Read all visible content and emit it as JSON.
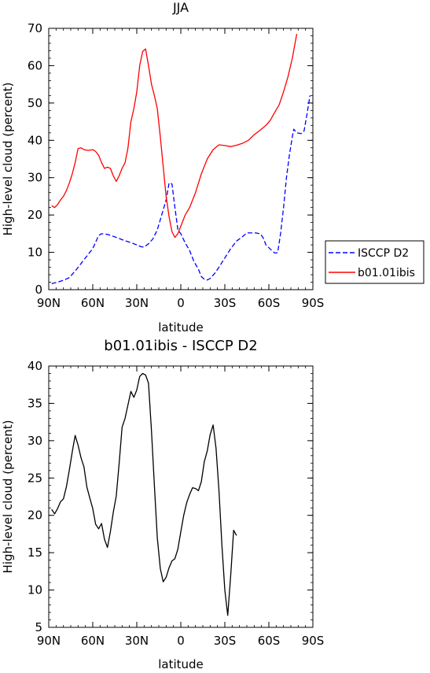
{
  "chart_data": [
    {
      "type": "line",
      "title": "JJA",
      "xlabel": "latitude",
      "ylabel": "High-level cloud (percent)",
      "xlim": [
        90,
        -90
      ],
      "ylim": [
        0,
        70
      ],
      "x_ticks": [
        90,
        60,
        30,
        0,
        -30,
        -60,
        -90
      ],
      "x_tick_labels": [
        "90N",
        "60N",
        "30N",
        "0",
        "30S",
        "60S",
        "90S"
      ],
      "y_ticks": [
        0,
        10,
        20,
        30,
        40,
        50,
        60,
        70
      ],
      "y_tick_labels": [
        "0",
        "10",
        "20",
        "30",
        "40",
        "50",
        "60",
        "70"
      ],
      "legend_position": "right",
      "series": [
        {
          "name": "ISCCP D2",
          "color": "#0000ff",
          "dash": "dashed",
          "points": [
            [
              88,
              1.6
            ],
            [
              84,
              2
            ],
            [
              80,
              2.5
            ],
            [
              76,
              3.2
            ],
            [
              72,
              5
            ],
            [
              68,
              7
            ],
            [
              64,
              9
            ],
            [
              60,
              11
            ],
            [
              56,
              14.5
            ],
            [
              54,
              15
            ],
            [
              50,
              14.8
            ],
            [
              46,
              14.3
            ],
            [
              42,
              13.7
            ],
            [
              38,
              13.1
            ],
            [
              34,
              12.6
            ],
            [
              30,
              12
            ],
            [
              27,
              11.5
            ],
            [
              25,
              11.4
            ],
            [
              22,
              12.3
            ],
            [
              19,
              13.6
            ],
            [
              16,
              16
            ],
            [
              13,
              20
            ],
            [
              10,
              24
            ],
            [
              8,
              28.6
            ],
            [
              6,
              28.3
            ],
            [
              4,
              22
            ],
            [
              2,
              16
            ],
            [
              0,
              15
            ],
            [
              -3,
              12.5
            ],
            [
              -6,
              10.5
            ],
            [
              -9,
              7.5
            ],
            [
              -12,
              5.5
            ],
            [
              -14,
              3.5
            ],
            [
              -16,
              2.8
            ],
            [
              -18,
              2.6
            ],
            [
              -20,
              3
            ],
            [
              -23,
              4.3
            ],
            [
              -26,
              6
            ],
            [
              -30,
              8.5
            ],
            [
              -34,
              11
            ],
            [
              -38,
              13
            ],
            [
              -42,
              14.2
            ],
            [
              -45,
              15.2
            ],
            [
              -48,
              15.2
            ],
            [
              -51,
              15.2
            ],
            [
              -54,
              15
            ],
            [
              -56,
              14
            ],
            [
              -58,
              12
            ],
            [
              -62,
              10.5
            ],
            [
              -64,
              9.8
            ],
            [
              -66,
              9.9
            ],
            [
              -68,
              15
            ],
            [
              -70,
              22
            ],
            [
              -72,
              30
            ],
            [
              -74,
              36
            ],
            [
              -76,
              41
            ],
            [
              -77,
              43
            ],
            [
              -79,
              42
            ],
            [
              -82,
              41.8
            ],
            [
              -84,
              42.5
            ],
            [
              -86,
              47
            ],
            [
              -88,
              52
            ]
          ]
        },
        {
          "name": "b01.01ibis",
          "color": "#ff0000",
          "dash": "solid",
          "points": [
            [
              88,
              22.5
            ],
            [
              86,
              22
            ],
            [
              84,
              22.8
            ],
            [
              82,
              24
            ],
            [
              80,
              25
            ],
            [
              78,
              26.5
            ],
            [
              76,
              28.5
            ],
            [
              74,
              31
            ],
            [
              72,
              34
            ],
            [
              70,
              37.8
            ],
            [
              68,
              38
            ],
            [
              66,
              37.5
            ],
            [
              63,
              37.3
            ],
            [
              60,
              37.5
            ],
            [
              58,
              37
            ],
            [
              56,
              36
            ],
            [
              54,
              34
            ],
            [
              52,
              32.5
            ],
            [
              50,
              32.8
            ],
            [
              48,
              32.5
            ],
            [
              46,
              30.5
            ],
            [
              44,
              29
            ],
            [
              42,
              30.5
            ],
            [
              40,
              32.5
            ],
            [
              38,
              34
            ],
            [
              36,
              38
            ],
            [
              34,
              45
            ],
            [
              32,
              48.5
            ],
            [
              30,
              53
            ],
            [
              28,
              60
            ],
            [
              26,
              63.8
            ],
            [
              24,
              64.5
            ],
            [
              22,
              60
            ],
            [
              20,
              55
            ],
            [
              18,
              52
            ],
            [
              16,
              48.5
            ],
            [
              14,
              41
            ],
            [
              12,
              33
            ],
            [
              10,
              25
            ],
            [
              8,
              19.5
            ],
            [
              6,
              15.5
            ],
            [
              4,
              14
            ],
            [
              2,
              15
            ],
            [
              0,
              17
            ],
            [
              -3,
              20
            ],
            [
              -6,
              22
            ],
            [
              -10,
              26
            ],
            [
              -14,
              31
            ],
            [
              -18,
              35
            ],
            [
              -22,
              37.5
            ],
            [
              -26,
              38.8
            ],
            [
              -30,
              38.6
            ],
            [
              -34,
              38.3
            ],
            [
              -38,
              38.7
            ],
            [
              -42,
              39.2
            ],
            [
              -46,
              40
            ],
            [
              -50,
              41.5
            ],
            [
              -54,
              42.7
            ],
            [
              -58,
              44
            ],
            [
              -61,
              45.4
            ],
            [
              -64,
              47.5
            ],
            [
              -67,
              49.5
            ],
            [
              -70,
              53
            ],
            [
              -73,
              57
            ],
            [
              -76,
              62
            ],
            [
              -79,
              68.5
            ]
          ]
        }
      ]
    },
    {
      "type": "line",
      "title": "b01.01ibis - ISCCP D2",
      "xlabel": "latitude",
      "ylabel": "High-level cloud (percent)",
      "xlim": [
        90,
        -90
      ],
      "ylim": [
        5,
        40
      ],
      "x_ticks": [
        90,
        60,
        30,
        0,
        -30,
        -60,
        -90
      ],
      "x_tick_labels": [
        "90N",
        "60N",
        "30N",
        "0",
        "30S",
        "60S",
        "90S"
      ],
      "y_ticks": [
        5,
        10,
        15,
        20,
        25,
        30,
        35,
        40
      ],
      "y_tick_labels": [
        "5",
        "10",
        "15",
        "20",
        "25",
        "30",
        "35",
        "40"
      ],
      "series": [
        {
          "color": "#000000",
          "dash": "solid",
          "points": [
            [
              88,
              20.8
            ],
            [
              86,
              20.2
            ],
            [
              84,
              20.9
            ],
            [
              82,
              21.8
            ],
            [
              80,
              22.2
            ],
            [
              78,
              23.8
            ],
            [
              76,
              26
            ],
            [
              74,
              28.5
            ],
            [
              72,
              30.7
            ],
            [
              70,
              29.4
            ],
            [
              68,
              27.7
            ],
            [
              66,
              26.5
            ],
            [
              64,
              23.8
            ],
            [
              62,
              22.3
            ],
            [
              60,
              20.9
            ],
            [
              58,
              18.8
            ],
            [
              56,
              18.2
            ],
            [
              54,
              18.9
            ],
            [
              52,
              16.8
            ],
            [
              50,
              15.7
            ],
            [
              48,
              17.8
            ],
            [
              46,
              20.4
            ],
            [
              44,
              22.6
            ],
            [
              42,
              27
            ],
            [
              40,
              31.8
            ],
            [
              38,
              33
            ],
            [
              36,
              34.8
            ],
            [
              34,
              36.6
            ],
            [
              32,
              35.8
            ],
            [
              30,
              36.8
            ],
            [
              28,
              38.6
            ],
            [
              26,
              39
            ],
            [
              24,
              38.8
            ],
            [
              22,
              37.7
            ],
            [
              20,
              31.3
            ],
            [
              18,
              24
            ],
            [
              16,
              17
            ],
            [
              14,
              12.9
            ],
            [
              12,
              11.1
            ],
            [
              10,
              11.7
            ],
            [
              8,
              13
            ],
            [
              6,
              13.9
            ],
            [
              4,
              14.2
            ],
            [
              2,
              15.5
            ],
            [
              0,
              17.8
            ],
            [
              -2,
              20
            ],
            [
              -4,
              21.7
            ],
            [
              -6,
              22.8
            ],
            [
              -8,
              23.7
            ],
            [
              -10,
              23.6
            ],
            [
              -12,
              23.3
            ],
            [
              -14,
              24.5
            ],
            [
              -16,
              27.2
            ],
            [
              -18,
              28.6
            ],
            [
              -20,
              30.8
            ],
            [
              -22,
              32.1
            ],
            [
              -24,
              29
            ],
            [
              -26,
              23.4
            ],
            [
              -28,
              16
            ],
            [
              -30,
              10
            ],
            [
              -32,
              6.6
            ],
            [
              -34,
              12
            ],
            [
              -36,
              18
            ],
            [
              -38,
              17.3
            ]
          ]
        }
      ]
    }
  ]
}
